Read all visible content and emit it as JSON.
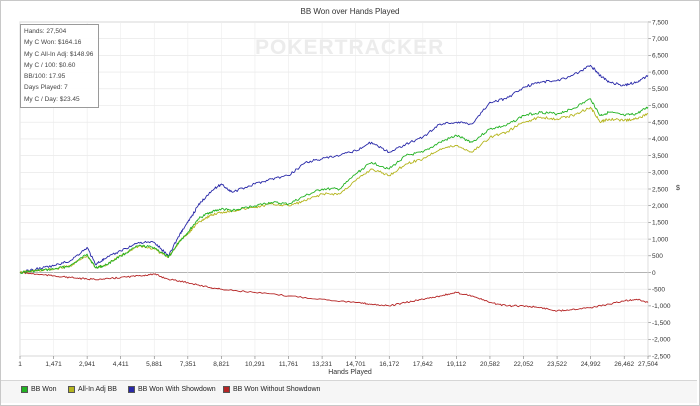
{
  "chart_data": {
    "type": "line",
    "title": "BB Won over Hands Played",
    "xlabel": "Hands Played",
    "ylabel": "$",
    "xlim": [
      1,
      27504
    ],
    "ylim": [
      -2500,
      7500
    ],
    "x_ticks": [
      1,
      1471,
      2941,
      4411,
      5881,
      7351,
      8821,
      10291,
      11761,
      13231,
      14701,
      16172,
      17642,
      19112,
      20582,
      22052,
      23522,
      24992,
      26462,
      27504
    ],
    "x_tick_labels": [
      "1",
      "1,471",
      "2,941",
      "4,411",
      "5,881",
      "7,351",
      "8,821",
      "10,291",
      "11,761",
      "13,231",
      "14,701",
      "16,172",
      "17,642",
      "19,112",
      "20,582",
      "22,052",
      "23,522",
      "24,992",
      "26,462",
      "27,504"
    ],
    "y_ticks": [
      -2500,
      -2000,
      -1500,
      -1000,
      -500,
      0,
      500,
      1000,
      1500,
      2000,
      2500,
      3000,
      3500,
      4000,
      4500,
      5000,
      5500,
      6000,
      6500,
      7000,
      7500
    ],
    "y_tick_labels": [
      "-2,500",
      "-2,000",
      "-1,500",
      "-1,000",
      "-500",
      "0",
      "500",
      "1,000",
      "1,500",
      "2,000",
      "2,500",
      "3,000",
      "3,500",
      "4,000",
      "4,500",
      "5,000",
      "5,500",
      "6,000",
      "6,500",
      "7,000",
      "7,500"
    ],
    "grid": true,
    "legend_position": "bottom",
    "series": [
      {
        "name": "BB Won",
        "color": "#22b222",
        "x": [
          1,
          700,
          1471,
          2200,
          2941,
          3300,
          3700,
          4411,
          5200,
          5881,
          6500,
          7000,
          7351,
          7800,
          8300,
          8821,
          9300,
          10291,
          11000,
          11761,
          12500,
          13231,
          14000,
          14701,
          15400,
          16172,
          16900,
          17642,
          18400,
          19112,
          19800,
          20582,
          21300,
          22052,
          22800,
          23522,
          24200,
          24992,
          25400,
          25800,
          26462,
          27000,
          27504
        ],
        "y": [
          0,
          50,
          100,
          200,
          550,
          150,
          200,
          500,
          800,
          750,
          450,
          950,
          1200,
          1600,
          1800,
          1900,
          1850,
          2000,
          2100,
          2050,
          2300,
          2500,
          2500,
          2950,
          3300,
          3100,
          3500,
          3600,
          3900,
          4100,
          3900,
          4300,
          4400,
          4700,
          4800,
          4750,
          4900,
          5200,
          4700,
          4800,
          4700,
          4750,
          4950
        ]
      },
      {
        "name": "All-In Adj BB",
        "color": "#b5b51e",
        "x": [
          1,
          700,
          1471,
          2200,
          2941,
          3300,
          3700,
          4411,
          5200,
          5881,
          6500,
          7000,
          7351,
          7800,
          8300,
          8821,
          9300,
          10291,
          11000,
          11761,
          12500,
          13231,
          14000,
          14701,
          15400,
          16172,
          16900,
          17642,
          18400,
          19112,
          19800,
          20582,
          21300,
          22052,
          22800,
          23522,
          24200,
          24992,
          25400,
          25800,
          26462,
          27000,
          27504
        ],
        "y": [
          0,
          50,
          100,
          200,
          500,
          150,
          200,
          500,
          800,
          700,
          450,
          950,
          1150,
          1500,
          1700,
          1800,
          1850,
          1950,
          2050,
          2000,
          2150,
          2350,
          2350,
          2750,
          3100,
          2900,
          3250,
          3400,
          3700,
          3800,
          3600,
          4050,
          4200,
          4500,
          4650,
          4600,
          4700,
          4950,
          4500,
          4600,
          4550,
          4600,
          4750
        ]
      },
      {
        "name": "BB Won With Showdown",
        "color": "#2828a8",
        "x": [
          1,
          700,
          1471,
          2200,
          2941,
          3300,
          3700,
          4411,
          5200,
          5881,
          6500,
          7000,
          7351,
          7800,
          8300,
          8821,
          9300,
          10291,
          11000,
          11761,
          12500,
          13231,
          14000,
          14701,
          15400,
          16172,
          16900,
          17642,
          18400,
          19112,
          19800,
          20582,
          21300,
          22052,
          22800,
          23522,
          24200,
          24992,
          25400,
          25800,
          26462,
          27000,
          27504
        ],
        "y": [
          0,
          100,
          200,
          350,
          750,
          250,
          400,
          650,
          900,
          900,
          500,
          1150,
          1500,
          2000,
          2400,
          2650,
          2400,
          2650,
          2800,
          2900,
          3300,
          3400,
          3500,
          3650,
          3900,
          3600,
          3850,
          4050,
          4450,
          4500,
          4450,
          5100,
          5200,
          5550,
          5700,
          5750,
          5900,
          6200,
          5900,
          5700,
          5600,
          5700,
          5900
        ]
      },
      {
        "name": "BB Won Without Showdown",
        "color": "#b52525",
        "x": [
          1,
          700,
          1471,
          2200,
          2941,
          3700,
          4411,
          5200,
          5881,
          6500,
          7351,
          8300,
          8821,
          10291,
          11761,
          13231,
          14701,
          15400,
          16172,
          16900,
          17642,
          18400,
          19112,
          19800,
          20582,
          21300,
          22052,
          22800,
          23522,
          24200,
          24992,
          25800,
          26462,
          27000,
          27504
        ],
        "y": [
          0,
          -50,
          -100,
          -150,
          -200,
          -200,
          -150,
          -100,
          -50,
          -200,
          -300,
          -450,
          -500,
          -600,
          -700,
          -800,
          -900,
          -950,
          -1000,
          -900,
          -800,
          -700,
          -600,
          -700,
          -900,
          -1000,
          -1000,
          -1050,
          -1150,
          -1100,
          -1050,
          -950,
          -850,
          -800,
          -900
        ]
      }
    ]
  },
  "stats": [
    "Hands: 27,504",
    "My C Won: $164.16",
    "My C All-In Adj: $148.96",
    "My C / 100: $0.60",
    "BB/100: 17.95",
    "Days Played: 7",
    "My C / Day: $23.45"
  ],
  "watermark": "POKERTRACKER"
}
